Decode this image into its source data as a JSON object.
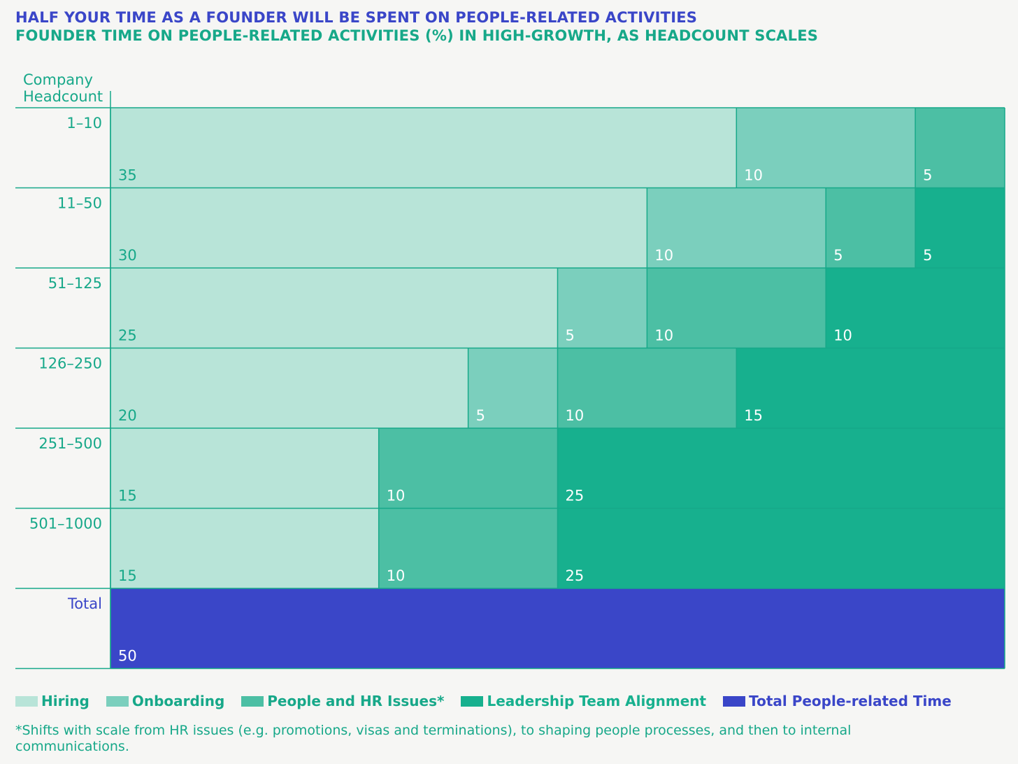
{
  "chart_data": {
    "type": "bar",
    "stacked": true,
    "orientation": "horizontal",
    "title": "HALF YOUR TIME AS A FOUNDER WILL BE SPENT ON PEOPLE-RELATED ACTIVITIES",
    "subtitle": "FOUNDER TIME ON PEOPLE-RELATED ACTIVITIES (%) IN HIGH-GROWTH, AS HEADCOUNT SCALES",
    "ylabel": "Company Headcount",
    "xlim": [
      0,
      50
    ],
    "categories": [
      "1–10",
      "11–50",
      "51–125",
      "126–250",
      "251–500",
      "501–1000",
      "Total"
    ],
    "series": [
      {
        "name": "Hiring",
        "color": "#b8e4d8",
        "values": [
          35,
          30,
          25,
          20,
          15,
          15,
          0
        ]
      },
      {
        "name": "Onboarding",
        "color": "#7bcfbd",
        "values": [
          10,
          10,
          5,
          5,
          0,
          0,
          0
        ]
      },
      {
        "name": "People and HR Issues*",
        "color": "#4cbfa4",
        "values": [
          5,
          5,
          10,
          10,
          10,
          10,
          0
        ]
      },
      {
        "name": "Leadership Team Alignment",
        "color": "#17b08e",
        "values": [
          0,
          5,
          10,
          15,
          25,
          25,
          0
        ]
      },
      {
        "name": "Total People-related Time",
        "color": "#3a46c8",
        "values": [
          0,
          0,
          0,
          0,
          0,
          0,
          50
        ]
      }
    ],
    "footnote": "*Shifts with scale from HR issues (e.g. promotions, visas and terminations), to shaping people processes, and then to internal communications."
  }
}
